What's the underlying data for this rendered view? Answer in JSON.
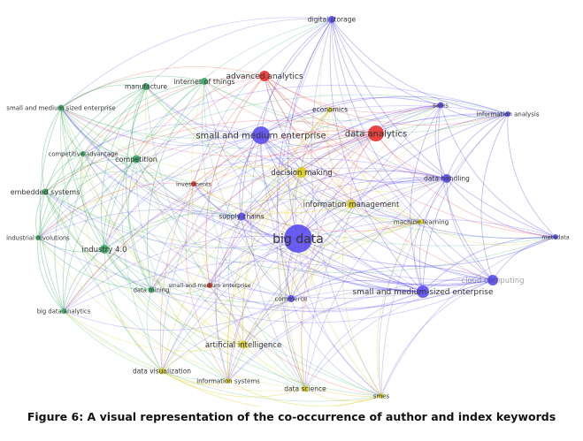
{
  "caption": "Figure 6: A visual representation of the co-occurrence of author and index keywords",
  "clusters": {
    "green": "#3aaa64",
    "red": "#e8322c",
    "blue": "#5b4cf0",
    "yellow": "#d9cc1c"
  },
  "nodes": [
    {
      "label": "digital storage",
      "cluster": "blue"
    },
    {
      "label": "advanced analytics",
      "cluster": "red"
    },
    {
      "label": "internet of things",
      "cluster": "green"
    },
    {
      "label": "manufacture",
      "cluster": "green"
    },
    {
      "label": "small and medium sized enterprise",
      "cluster": "green"
    },
    {
      "label": "economics",
      "cluster": "yellow"
    },
    {
      "label": "sales",
      "cluster": "blue"
    },
    {
      "label": "information analysis",
      "cluster": "blue"
    },
    {
      "label": "small and medium enterprise",
      "cluster": "blue"
    },
    {
      "label": "data analytics",
      "cluster": "red"
    },
    {
      "label": "competitive advantage",
      "cluster": "green"
    },
    {
      "label": "competition",
      "cluster": "green"
    },
    {
      "label": "decision making",
      "cluster": "yellow"
    },
    {
      "label": "data handling",
      "cluster": "blue"
    },
    {
      "label": "investments",
      "cluster": "red"
    },
    {
      "label": "embedded systems",
      "cluster": "green"
    },
    {
      "label": "information management",
      "cluster": "yellow"
    },
    {
      "label": "supply chains",
      "cluster": "blue"
    },
    {
      "label": "machine learning",
      "cluster": "yellow"
    },
    {
      "label": "big data",
      "cluster": "blue"
    },
    {
      "label": "industrial revolutions",
      "cluster": "green"
    },
    {
      "label": "metadata",
      "cluster": "blue"
    },
    {
      "label": "industry 4.0",
      "cluster": "green"
    },
    {
      "label": "data mining",
      "cluster": "green"
    },
    {
      "label": "small-and-medium enterprise",
      "cluster": "red"
    },
    {
      "label": "cloud computing",
      "cluster": "blue"
    },
    {
      "label": "small and medium-sized enterprise",
      "cluster": "blue"
    },
    {
      "label": "big data analytics",
      "cluster": "green"
    },
    {
      "label": "commerce",
      "cluster": "blue"
    },
    {
      "label": "artificial intelligence",
      "cluster": "yellow"
    },
    {
      "label": "data visualization",
      "cluster": "yellow"
    },
    {
      "label": "information systems",
      "cluster": "yellow"
    },
    {
      "label": "data science",
      "cluster": "yellow"
    },
    {
      "label": "smes",
      "cluster": "yellow"
    }
  ]
}
